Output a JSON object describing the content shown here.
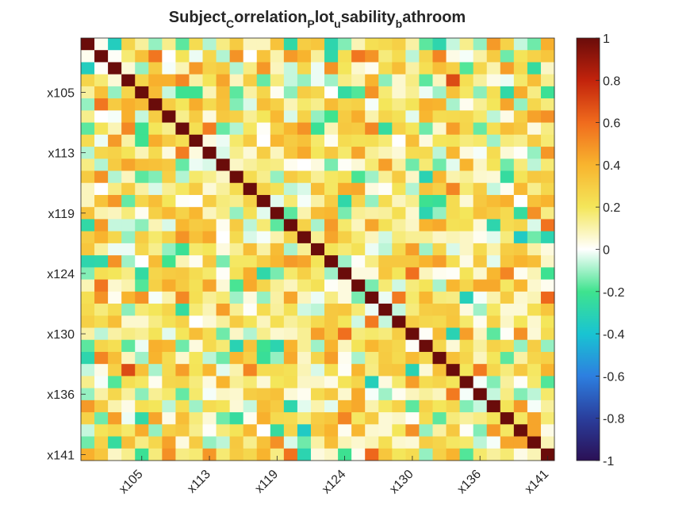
{
  "chart_data": {
    "type": "heatmap",
    "title": "Subject_Correlation_Plot_usability_bathroom",
    "title_segments": [
      {
        "text": "Subject",
        "sub": false
      },
      {
        "text": "C",
        "sub": true
      },
      {
        "text": "orrelation",
        "sub": false
      },
      {
        "text": "P",
        "sub": true
      },
      {
        "text": "lot",
        "sub": false
      },
      {
        "text": "u",
        "sub": true
      },
      {
        "text": "sability",
        "sub": false
      },
      {
        "text": "b",
        "sub": true
      },
      {
        "text": "athroom",
        "sub": false
      }
    ],
    "n": 35,
    "x_ticks": [
      {
        "index": 4,
        "label": "x105"
      },
      {
        "index": 9,
        "label": "x113"
      },
      {
        "index": 14,
        "label": "x119"
      },
      {
        "index": 19,
        "label": "x124"
      },
      {
        "index": 24,
        "label": "x130"
      },
      {
        "index": 29,
        "label": "x136"
      },
      {
        "index": 34,
        "label": "x141"
      }
    ],
    "y_ticks": [
      {
        "index": 4,
        "label": "x105"
      },
      {
        "index": 9,
        "label": "x113"
      },
      {
        "index": 14,
        "label": "x119"
      },
      {
        "index": 19,
        "label": "x124"
      },
      {
        "index": 24,
        "label": "x130"
      },
      {
        "index": 29,
        "label": "x136"
      },
      {
        "index": 34,
        "label": "x141"
      }
    ],
    "clim": [
      -1,
      1
    ],
    "colorbar": {
      "position": "right",
      "ticks": [
        1,
        0.8,
        0.6,
        0.4,
        0.2,
        0,
        -0.2,
        -0.4,
        -0.6,
        -0.8,
        -1
      ],
      "tick_labels": [
        "1",
        "0.8",
        "0.6",
        "0.4",
        "0.2",
        "0",
        "-0.2",
        "-0.4",
        "-0.6",
        "-0.8",
        "-1"
      ]
    },
    "colormap_stops": [
      [
        -1.0,
        "#2b1055"
      ],
      [
        -0.8,
        "#2a3e9c"
      ],
      [
        -0.6,
        "#2d7fe0"
      ],
      [
        -0.4,
        "#19c4d2"
      ],
      [
        -0.2,
        "#3fe38e"
      ],
      [
        0.0,
        "#ffffff"
      ],
      [
        0.2,
        "#f4e65a"
      ],
      [
        0.4,
        "#f8b42e"
      ],
      [
        0.6,
        "#f06b1d"
      ],
      [
        0.8,
        "#c2230c"
      ],
      [
        1.0,
        "#6a0c0a"
      ]
    ],
    "seed": 20240517,
    "diagonal_value": 1
  }
}
